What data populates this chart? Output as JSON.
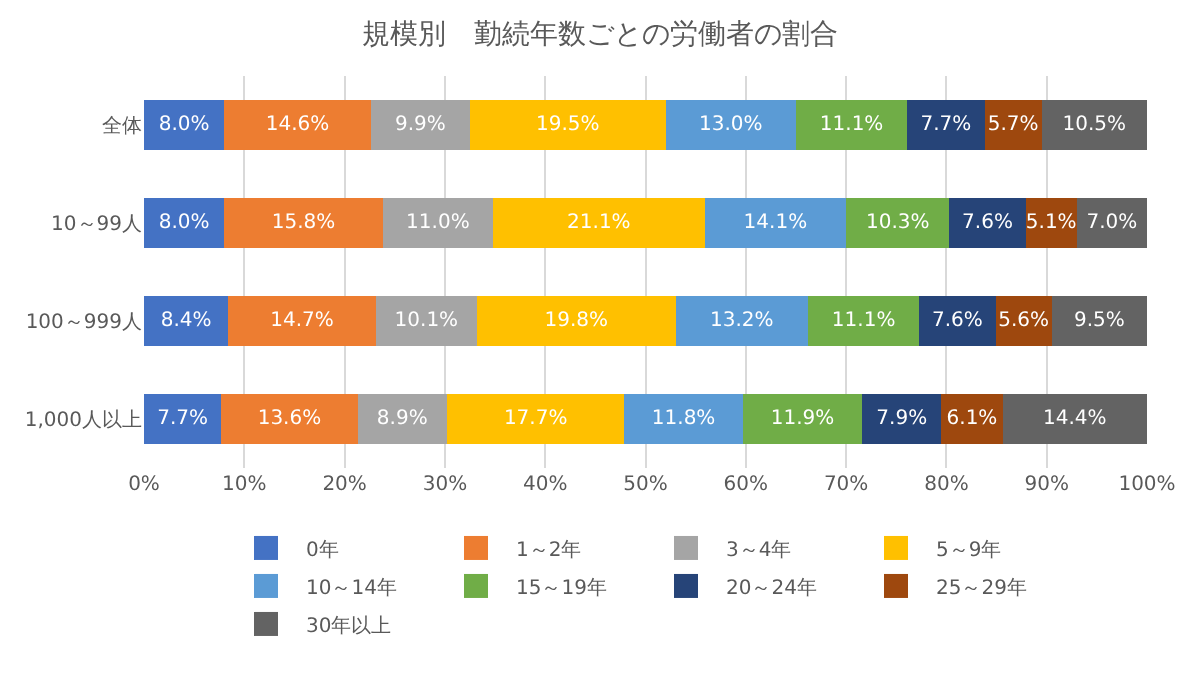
{
  "chart_data": {
    "type": "bar",
    "orientation": "horizontal",
    "stacked": true,
    "title": "規模別　勤続年数ごとの労働者の割合",
    "categories": [
      "全体",
      "10～99人",
      "100～999人",
      "1,000人以上"
    ],
    "xlim": [
      0,
      100.1
    ],
    "xticks": [
      {
        "value": 0,
        "label": "0%"
      },
      {
        "value": 10,
        "label": "10%"
      },
      {
        "value": 20,
        "label": "20%"
      },
      {
        "value": 30,
        "label": "30%"
      },
      {
        "value": 40,
        "label": "40%"
      },
      {
        "value": 50,
        "label": "50%"
      },
      {
        "value": 60,
        "label": "60%"
      },
      {
        "value": 70,
        "label": "70%"
      },
      {
        "value": 80,
        "label": "80%"
      },
      {
        "value": 90,
        "label": "90%"
      },
      {
        "value": 100,
        "label": "100%"
      }
    ],
    "grid": "x",
    "legend": "bottom",
    "series": [
      {
        "name": "0年",
        "color": "#4472c4",
        "values": [
          8.0,
          8.0,
          8.4,
          7.7
        ],
        "value_labels": [
          "8.0%",
          "8.0%",
          "8.4%",
          "7.7%"
        ]
      },
      {
        "name": "1～2年",
        "color": "#ed7d31",
        "values": [
          14.6,
          15.8,
          14.7,
          13.6
        ],
        "value_labels": [
          "14.6%",
          "15.8%",
          "14.7%",
          "13.6%"
        ]
      },
      {
        "name": "3～4年",
        "color": "#a5a5a5",
        "values": [
          9.9,
          11.0,
          10.1,
          8.9
        ],
        "value_labels": [
          "9.9%",
          "11.0%",
          "10.1%",
          "8.9%"
        ]
      },
      {
        "name": "5～9年",
        "color": "#ffc000",
        "values": [
          19.5,
          21.1,
          19.8,
          17.7
        ],
        "value_labels": [
          "19.5%",
          "21.1%",
          "19.8%",
          "17.7%"
        ]
      },
      {
        "name": "10～14年",
        "color": "#5b9bd5",
        "values": [
          13.0,
          14.1,
          13.2,
          11.8
        ],
        "value_labels": [
          "13.0%",
          "14.1%",
          "13.2%",
          "11.8%"
        ]
      },
      {
        "name": "15～19年",
        "color": "#70ad47",
        "values": [
          11.1,
          10.3,
          11.1,
          11.9
        ],
        "value_labels": [
          "11.1%",
          "10.3%",
          "11.1%",
          "11.9%"
        ]
      },
      {
        "name": "20～24年",
        "color": "#264478",
        "values": [
          7.7,
          7.6,
          7.6,
          7.9
        ],
        "value_labels": [
          "7.7%",
          "7.6%",
          "7.6%",
          "7.9%"
        ]
      },
      {
        "name": "25～29年",
        "color": "#9e480e",
        "values": [
          5.7,
          5.1,
          5.6,
          6.1
        ],
        "value_labels": [
          "5.7%",
          "5.1%",
          "5.6%",
          "6.1%"
        ]
      },
      {
        "name": "30年以上",
        "color": "#636363",
        "values": [
          10.5,
          7.0,
          9.5,
          14.4
        ],
        "value_labels": [
          "10.5%",
          "7.0%",
          "9.5%",
          "14.4%"
        ]
      }
    ]
  }
}
